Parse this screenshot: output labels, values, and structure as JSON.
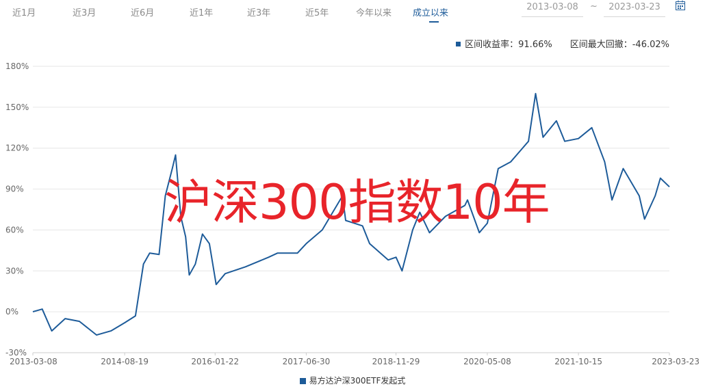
{
  "range_tabs": [
    "近1月",
    "近3月",
    "近6月",
    "近1年",
    "近3年",
    "近5年",
    "今年以来",
    "成立以来"
  ],
  "active_tab": 7,
  "date_range": {
    "start": "2013-03-08",
    "separator": "~",
    "end": "2023-03-23",
    "icon": "calendar-icon"
  },
  "summary": {
    "return_label": "区间收益率：",
    "return_value": "91.66%",
    "drawdown_label": "区间最大回撤：",
    "drawdown_value": "-46.02%"
  },
  "watermark": "沪深300指数10年",
  "colors": {
    "series": "#1d5b99",
    "grid": "#e6e6e6",
    "watermark": "#e8242a"
  },
  "chart_data": {
    "type": "line",
    "title": "",
    "xlabel": "",
    "ylabel": "",
    "x_ticks": [
      "2013-03-08",
      "2014-08-19",
      "2016-01-22",
      "2017-06-30",
      "2018-11-29",
      "2020-05-08",
      "2021-10-15",
      "2023-03-23"
    ],
    "y_ticks": [
      "180%",
      "150%",
      "120%",
      "90%",
      "60%",
      "30%",
      "0%",
      "-30%"
    ],
    "ylim": [
      -30,
      180
    ],
    "xlim": [
      "2013-03-08",
      "2023-03-23"
    ],
    "grid": true,
    "legend_position": "bottom-center",
    "series": [
      {
        "name": "易方达沪深300ETF发起式",
        "points": [
          [
            "2013-03-08",
            0
          ],
          [
            "2013-05-01",
            2
          ],
          [
            "2013-06-25",
            -14
          ],
          [
            "2013-09-10",
            -5
          ],
          [
            "2013-12-01",
            -7
          ],
          [
            "2014-03-10",
            -17
          ],
          [
            "2014-06-01",
            -14
          ],
          [
            "2014-08-19",
            -8
          ],
          [
            "2014-10-20",
            -3
          ],
          [
            "2014-12-05",
            35
          ],
          [
            "2015-01-10",
            43
          ],
          [
            "2015-03-05",
            42
          ],
          [
            "2015-04-10",
            85
          ],
          [
            "2015-05-20",
            105
          ],
          [
            "2015-06-08",
            115
          ],
          [
            "2015-07-08",
            70
          ],
          [
            "2015-08-05",
            55
          ],
          [
            "2015-08-26",
            27
          ],
          [
            "2015-09-30",
            35
          ],
          [
            "2015-11-10",
            57
          ],
          [
            "2015-12-20",
            50
          ],
          [
            "2016-01-28",
            20
          ],
          [
            "2016-03-20",
            28
          ],
          [
            "2016-07-15",
            33
          ],
          [
            "2016-11-25",
            40
          ],
          [
            "2017-01-15",
            43
          ],
          [
            "2017-05-10",
            43
          ],
          [
            "2017-06-30",
            50
          ],
          [
            "2017-09-30",
            60
          ],
          [
            "2018-01-25",
            85
          ],
          [
            "2018-02-12",
            67
          ],
          [
            "2018-05-20",
            63
          ],
          [
            "2018-06-30",
            50
          ],
          [
            "2018-10-15",
            38
          ],
          [
            "2018-11-29",
            40
          ],
          [
            "2019-01-03",
            30
          ],
          [
            "2019-03-05",
            60
          ],
          [
            "2019-04-15",
            73
          ],
          [
            "2019-06-10",
            58
          ],
          [
            "2019-09-10",
            70
          ],
          [
            "2019-12-31",
            78
          ],
          [
            "2020-01-15",
            82
          ],
          [
            "2020-03-23",
            58
          ],
          [
            "2020-05-08",
            65
          ],
          [
            "2020-07-10",
            105
          ],
          [
            "2020-09-20",
            110
          ],
          [
            "2020-12-31",
            125
          ],
          [
            "2021-02-10",
            160
          ],
          [
            "2021-03-25",
            128
          ],
          [
            "2021-06-10",
            140
          ],
          [
            "2021-07-28",
            125
          ],
          [
            "2021-10-15",
            127
          ],
          [
            "2021-12-31",
            135
          ],
          [
            "2022-03-15",
            110
          ],
          [
            "2022-04-26",
            82
          ],
          [
            "2022-06-30",
            105
          ],
          [
            "2022-09-30",
            85
          ],
          [
            "2022-10-31",
            68
          ],
          [
            "2022-12-31",
            85
          ],
          [
            "2023-01-30",
            98
          ],
          [
            "2023-03-23",
            91.66
          ]
        ]
      }
    ]
  }
}
